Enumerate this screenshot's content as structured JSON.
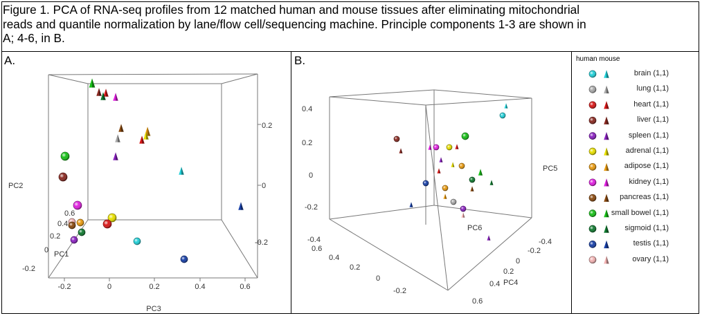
{
  "caption": "Figure 1. PCA of RNA-seq profiles from 12 matched human and mouse tissues after eliminating mitochondrial\nreads and quantile normalization by lane/flow cell/sequencing machine.  Principle components 1-3 are shown in\nA; 4-6, in B.",
  "panelA": {
    "label": "A.",
    "axis_labels": {
      "pc2": "PC2",
      "pc1": "PC1",
      "pc3": "PC3"
    },
    "pc3_ticks": [
      "-0.2",
      "0",
      "0.2",
      "0.4",
      "0.6"
    ],
    "pc1_ticks": [
      "0.6",
      "0.4",
      "0.2",
      "0",
      "-0.2"
    ],
    "pc2_ticks": [
      "0.2",
      "0",
      "-0.2"
    ]
  },
  "panelB": {
    "label": "B.",
    "axis_labels": {
      "pc5": "PC5",
      "pc6": "PC6",
      "pc4": "PC4"
    },
    "pc5_ticks": [
      "0.4",
      "0.2",
      "0",
      "-0.2"
    ],
    "pc6_ticks": [
      "-0.4",
      "0.6",
      "0.4",
      "0.2",
      "0",
      "-0.2"
    ],
    "pc4_ticks": [
      "-0.4",
      "-0.2",
      "0",
      "0.2",
      "0.4",
      "0.6"
    ]
  },
  "legend": {
    "headers": [
      "human",
      "mouse"
    ],
    "items": [
      {
        "label": "brain (1,1)",
        "color": "#22d0d8"
      },
      {
        "label": "lung (1,1)",
        "color": "#a8a8a8"
      },
      {
        "label": "heart (1,1)",
        "color": "#d81818"
      },
      {
        "label": "liver (1,1)",
        "color": "#8a2a22"
      },
      {
        "label": "spleen (1,1)",
        "color": "#8a22c0"
      },
      {
        "label": "adrenal (1,1)",
        "color": "#e8e000"
      },
      {
        "label": "adipose (1,1)",
        "color": "#e89a10"
      },
      {
        "label": "kidney (1,1)",
        "color": "#e020e0"
      },
      {
        "label": "pancreas (1,1)",
        "color": "#8a4a10"
      },
      {
        "label": "small bowel (1,1)",
        "color": "#18c018"
      },
      {
        "label": "sigmoid (1,1)",
        "color": "#107a30"
      },
      {
        "label": "testis (1,1)",
        "color": "#1840a8"
      },
      {
        "label": "ovary (1,1)",
        "color": "#f0b0b0"
      }
    ]
  },
  "chart_data": [
    {
      "type": "scatter",
      "panel": "A",
      "xlabel": "PC3",
      "ylabel": "PC2",
      "zlabel": "PC1",
      "points": [
        {
          "series": "small bowel",
          "species": "mouse"
        },
        {
          "series": "liver",
          "species": "mouse"
        },
        {
          "series": "heart",
          "species": "mouse"
        },
        {
          "series": "sigmoid",
          "species": "mouse"
        },
        {
          "series": "kidney",
          "species": "mouse"
        },
        {
          "series": "pancreas",
          "species": "mouse"
        },
        {
          "series": "adipose",
          "species": "mouse"
        },
        {
          "series": "adrenal",
          "species": "mouse"
        },
        {
          "series": "lung",
          "species": "mouse"
        },
        {
          "series": "heart",
          "species": "mouse"
        },
        {
          "series": "spleen",
          "species": "mouse"
        },
        {
          "series": "brain",
          "species": "mouse"
        },
        {
          "series": "testis",
          "species": "mouse"
        },
        {
          "series": "small bowel",
          "species": "human"
        },
        {
          "series": "liver",
          "species": "human"
        },
        {
          "series": "kidney",
          "species": "human"
        },
        {
          "series": "ovary",
          "species": "human"
        },
        {
          "series": "adipose",
          "species": "human"
        },
        {
          "series": "pancreas",
          "species": "human"
        },
        {
          "series": "adrenal",
          "species": "human"
        },
        {
          "series": "heart",
          "species": "human"
        },
        {
          "series": "sigmoid",
          "species": "human"
        },
        {
          "series": "spleen",
          "species": "human"
        },
        {
          "series": "brain",
          "species": "human"
        },
        {
          "series": "testis",
          "species": "human"
        }
      ]
    },
    {
      "type": "scatter",
      "panel": "B",
      "xlabel": "PC4",
      "ylabel": "PC5",
      "zlabel": "PC6",
      "points": [
        {
          "series": "brain",
          "species": "mouse"
        },
        {
          "series": "brain",
          "species": "human"
        },
        {
          "series": "small bowel",
          "species": "human"
        },
        {
          "series": "liver",
          "species": "human"
        },
        {
          "series": "liver",
          "species": "mouse"
        },
        {
          "series": "kidney",
          "species": "mouse"
        },
        {
          "series": "kidney",
          "species": "human"
        },
        {
          "series": "adrenal",
          "species": "human"
        },
        {
          "series": "heart",
          "species": "mouse"
        },
        {
          "series": "spleen",
          "species": "mouse"
        },
        {
          "series": "adrenal",
          "species": "mouse"
        },
        {
          "series": "adipose",
          "species": "human"
        },
        {
          "series": "heart",
          "species": "mouse"
        },
        {
          "series": "small bowel",
          "species": "mouse"
        },
        {
          "series": "sigmoid",
          "species": "human"
        },
        {
          "series": "sigmoid",
          "species": "mouse"
        },
        {
          "series": "pancreas",
          "species": "mouse"
        },
        {
          "series": "testis",
          "species": "human"
        },
        {
          "series": "adipose",
          "species": "human"
        },
        {
          "series": "adipose",
          "species": "mouse"
        },
        {
          "series": "lung",
          "species": "human"
        },
        {
          "series": "testis",
          "species": "mouse"
        },
        {
          "series": "spleen",
          "species": "human"
        },
        {
          "series": "ovary",
          "species": "mouse"
        },
        {
          "series": "spleen",
          "species": "mouse"
        }
      ]
    }
  ]
}
